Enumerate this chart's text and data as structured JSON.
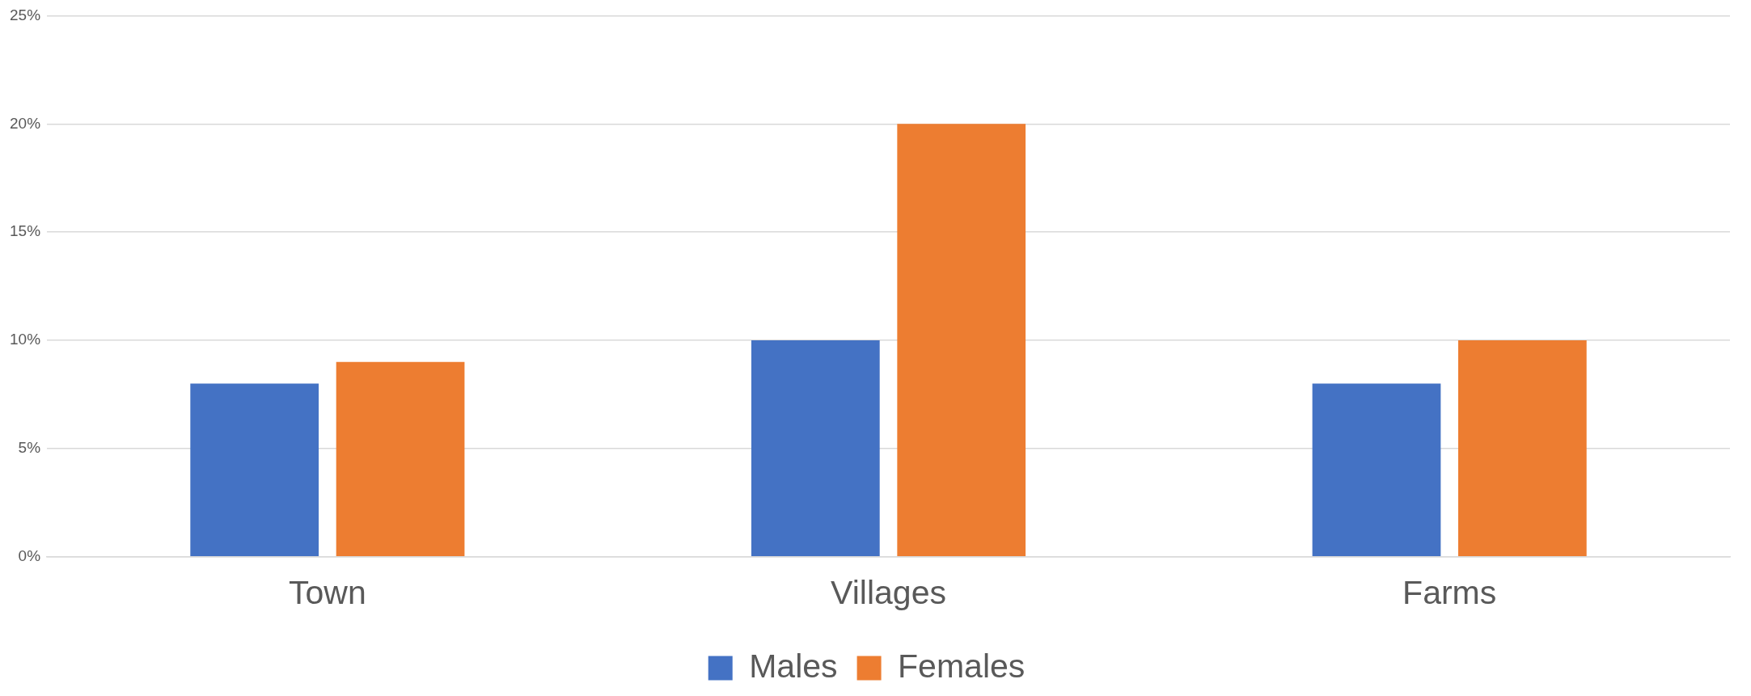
{
  "chart_data": {
    "type": "bar",
    "categories": [
      "Town",
      "Villages",
      "Farms"
    ],
    "series": [
      {
        "name": "Males",
        "color": "#4472c4",
        "values": [
          8,
          10,
          8
        ]
      },
      {
        "name": "Females",
        "color": "#ed7d31",
        "values": [
          9,
          20,
          10
        ]
      }
    ],
    "ylim": [
      0,
      25
    ],
    "yticks": [
      {
        "value": 0,
        "label": "0%"
      },
      {
        "value": 5,
        "label": "5%"
      },
      {
        "value": 10,
        "label": "10%"
      },
      {
        "value": 15,
        "label": "15%"
      },
      {
        "value": 20,
        "label": "20%"
      },
      {
        "value": 25,
        "label": "25%"
      }
    ],
    "grid": "y",
    "legend": "bottom"
  }
}
